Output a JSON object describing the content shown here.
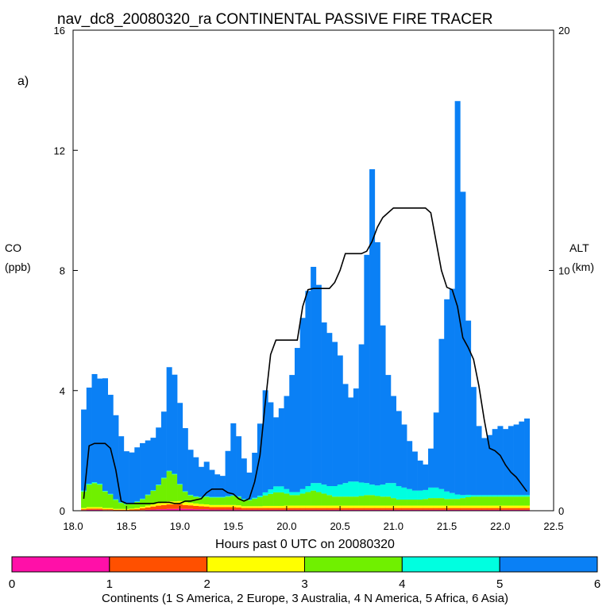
{
  "chart_data": {
    "type": "area",
    "title": "nav_dc8_20080320_ra CONTINENTAL PASSIVE FIRE TRACER",
    "panel_label": "a)",
    "xlabel": "Hours past 0 UTC on 20080320",
    "ylabel_left_line1": "CO",
    "ylabel_left_line2": "(ppb)",
    "ylabel_right_line1": "ALT",
    "ylabel_right_line2": "(km)",
    "xlim": [
      18.0,
      22.5
    ],
    "ylim_left": [
      0,
      16
    ],
    "ylim_right": [
      0,
      20
    ],
    "x_ticks": [
      "18.0",
      "18.5",
      "19.0",
      "19.5",
      "20.0",
      "20.5",
      "21.0",
      "21.5",
      "22.0",
      "22.5"
    ],
    "y_ticks_left": [
      "0",
      "4",
      "8",
      "12",
      "16"
    ],
    "y_ticks_right": [
      "0",
      "10",
      "20"
    ],
    "stacked_series_note": "stacked by continent; cumulative totals",
    "time": [
      18.1,
      18.15,
      18.2,
      18.25,
      18.3,
      18.35,
      18.4,
      18.45,
      18.5,
      18.55,
      18.6,
      18.65,
      18.7,
      18.75,
      18.8,
      18.85,
      18.9,
      18.95,
      19.0,
      19.05,
      19.1,
      19.15,
      19.2,
      19.25,
      19.3,
      19.35,
      19.4,
      19.45,
      19.5,
      19.55,
      19.6,
      19.65,
      19.7,
      19.75,
      19.8,
      19.85,
      19.9,
      19.95,
      20.0,
      20.05,
      20.1,
      20.15,
      20.2,
      20.25,
      20.3,
      20.35,
      20.4,
      20.45,
      20.5,
      20.55,
      20.6,
      20.65,
      20.7,
      20.75,
      20.8,
      20.85,
      20.9,
      20.95,
      21.0,
      21.05,
      21.1,
      21.15,
      21.2,
      21.25,
      21.3,
      21.35,
      21.4,
      21.45,
      21.5,
      21.55,
      21.6,
      21.65,
      21.7,
      21.75,
      21.8,
      21.85,
      21.9,
      21.95,
      22.0,
      22.05,
      22.1,
      22.15,
      22.2,
      22.25
    ],
    "series": [
      {
        "name": "S America",
        "code": 1,
        "values": [
          0.02,
          0.03,
          0.03,
          0.03,
          0.02,
          0.02,
          0.01,
          0.01,
          0.01,
          0.01,
          0.01,
          0.02,
          0.03,
          0.04,
          0.05,
          0.05,
          0.06,
          0.06,
          0.07,
          0.06,
          0.06,
          0.05,
          0.05,
          0.05,
          0.04,
          0.04,
          0.04,
          0.04,
          0.04,
          0.04,
          0.03,
          0.03,
          0.03,
          0.03,
          0.03,
          0.03,
          0.03,
          0.03,
          0.03,
          0.03,
          0.03,
          0.03,
          0.03,
          0.03,
          0.03,
          0.03,
          0.03,
          0.03,
          0.03,
          0.03,
          0.03,
          0.03,
          0.03,
          0.03,
          0.03,
          0.03,
          0.03,
          0.03,
          0.03,
          0.03,
          0.03,
          0.03,
          0.03,
          0.03,
          0.03,
          0.03,
          0.03,
          0.03,
          0.03,
          0.03,
          0.03,
          0.03,
          0.03,
          0.03,
          0.03,
          0.03,
          0.03,
          0.03,
          0.03,
          0.03,
          0.03,
          0.03,
          0.03,
          0.03
        ]
      },
      {
        "name": "Europe",
        "code": 2,
        "values": [
          0.03,
          0.04,
          0.04,
          0.04,
          0.03,
          0.03,
          0.02,
          0.02,
          0.02,
          0.03,
          0.04,
          0.06,
          0.08,
          0.1,
          0.12,
          0.14,
          0.15,
          0.15,
          0.15,
          0.13,
          0.12,
          0.11,
          0.1,
          0.09,
          0.08,
          0.08,
          0.08,
          0.08,
          0.08,
          0.07,
          0.06,
          0.06,
          0.06,
          0.06,
          0.06,
          0.06,
          0.06,
          0.06,
          0.06,
          0.06,
          0.06,
          0.06,
          0.06,
          0.06,
          0.06,
          0.06,
          0.06,
          0.06,
          0.06,
          0.06,
          0.06,
          0.06,
          0.06,
          0.06,
          0.06,
          0.06,
          0.06,
          0.06,
          0.06,
          0.06,
          0.06,
          0.06,
          0.06,
          0.06,
          0.06,
          0.06,
          0.06,
          0.06,
          0.06,
          0.06,
          0.06,
          0.06,
          0.06,
          0.06,
          0.06,
          0.06,
          0.06,
          0.06,
          0.06,
          0.06,
          0.06,
          0.06,
          0.06,
          0.06
        ]
      },
      {
        "name": "Australia",
        "code": 3,
        "values": [
          0.04,
          0.05,
          0.05,
          0.05,
          0.04,
          0.04,
          0.03,
          0.03,
          0.03,
          0.03,
          0.04,
          0.05,
          0.06,
          0.07,
          0.08,
          0.09,
          0.1,
          0.1,
          0.1,
          0.09,
          0.08,
          0.08,
          0.07,
          0.07,
          0.07,
          0.07,
          0.07,
          0.07,
          0.07,
          0.07,
          0.06,
          0.06,
          0.06,
          0.06,
          0.07,
          0.07,
          0.07,
          0.07,
          0.08,
          0.08,
          0.08,
          0.08,
          0.08,
          0.08,
          0.08,
          0.08,
          0.08,
          0.08,
          0.08,
          0.08,
          0.08,
          0.08,
          0.08,
          0.08,
          0.08,
          0.08,
          0.08,
          0.08,
          0.08,
          0.08,
          0.08,
          0.08,
          0.08,
          0.08,
          0.08,
          0.08,
          0.08,
          0.08,
          0.08,
          0.08,
          0.08,
          0.08,
          0.08,
          0.08,
          0.08,
          0.08,
          0.08,
          0.08,
          0.08,
          0.08,
          0.08,
          0.08,
          0.08,
          0.08
        ]
      },
      {
        "name": "N America",
        "code": 4,
        "values": [
          0.55,
          0.75,
          0.8,
          0.75,
          0.55,
          0.45,
          0.3,
          0.2,
          0.15,
          0.15,
          0.2,
          0.25,
          0.35,
          0.45,
          0.6,
          0.8,
          1.0,
          0.9,
          0.55,
          0.35,
          0.25,
          0.22,
          0.22,
          0.25,
          0.25,
          0.25,
          0.25,
          0.28,
          0.3,
          0.28,
          0.22,
          0.2,
          0.25,
          0.3,
          0.35,
          0.4,
          0.45,
          0.45,
          0.4,
          0.35,
          0.35,
          0.4,
          0.45,
          0.5,
          0.45,
          0.4,
          0.35,
          0.3,
          0.3,
          0.3,
          0.3,
          0.3,
          0.32,
          0.35,
          0.35,
          0.32,
          0.3,
          0.3,
          0.25,
          0.2,
          0.2,
          0.2,
          0.2,
          0.2,
          0.22,
          0.25,
          0.25,
          0.25,
          0.22,
          0.22,
          0.22,
          0.25,
          0.28,
          0.3,
          0.3,
          0.3,
          0.3,
          0.3,
          0.3,
          0.3,
          0.3,
          0.3,
          0.3,
          0.3
        ]
      },
      {
        "name": "Africa",
        "code": 5,
        "values": [
          0.03,
          0.03,
          0.03,
          0.03,
          0.02,
          0.02,
          0.02,
          0.02,
          0.02,
          0.02,
          0.02,
          0.02,
          0.02,
          0.02,
          0.02,
          0.02,
          0.02,
          0.02,
          0.02,
          0.02,
          0.02,
          0.02,
          0.02,
          0.02,
          0.02,
          0.02,
          0.02,
          0.02,
          0.02,
          0.02,
          0.02,
          0.02,
          0.03,
          0.05,
          0.1,
          0.15,
          0.2,
          0.2,
          0.15,
          0.1,
          0.1,
          0.15,
          0.2,
          0.25,
          0.3,
          0.3,
          0.3,
          0.35,
          0.4,
          0.45,
          0.5,
          0.5,
          0.45,
          0.4,
          0.35,
          0.35,
          0.4,
          0.45,
          0.5,
          0.45,
          0.4,
          0.35,
          0.3,
          0.3,
          0.3,
          0.35,
          0.35,
          0.3,
          0.25,
          0.2,
          0.15,
          0.1,
          0.08,
          0.05,
          0.05,
          0.05,
          0.05,
          0.05,
          0.05,
          0.05,
          0.05,
          0.05,
          0.05,
          0.05
        ]
      },
      {
        "name": "Asia",
        "code": 6,
        "values": [
          2.7,
          3.2,
          3.6,
          3.5,
          3.75,
          3.3,
          2.8,
          2.2,
          1.75,
          1.7,
          1.8,
          1.85,
          1.8,
          1.75,
          1.9,
          2.2,
          3.45,
          3.3,
          2.7,
          2.1,
          1.5,
          1.3,
          1.0,
          1.15,
          0.9,
          0.75,
          0.7,
          1.5,
          2.4,
          2.0,
          1.35,
          0.9,
          1.5,
          2.4,
          3.4,
          2.9,
          2.3,
          2.6,
          3.1,
          3.9,
          4.8,
          5.7,
          6.5,
          7.2,
          6.6,
          5.4,
          5.1,
          4.8,
          4.3,
          3.3,
          2.8,
          3.1,
          4.6,
          7.6,
          10.5,
          8.1,
          5.3,
          3.6,
          2.9,
          2.5,
          2.1,
          1.6,
          1.3,
          1.0,
          0.85,
          1.3,
          2.5,
          5.0,
          6.4,
          6.8,
          13.1,
          10.1,
          5.8,
          3.6,
          2.3,
          1.9,
          2.0,
          2.2,
          2.3,
          2.2,
          2.3,
          2.35,
          2.45,
          2.55
        ]
      }
    ],
    "altitude_km": [
      0.5,
      2.7,
      2.8,
      2.8,
      2.8,
      2.6,
      1.7,
      0.4,
      0.3,
      0.3,
      0.3,
      0.3,
      0.3,
      0.3,
      0.35,
      0.35,
      0.35,
      0.3,
      0.3,
      0.4,
      0.4,
      0.45,
      0.5,
      0.75,
      0.9,
      0.9,
      0.9,
      0.75,
      0.7,
      0.5,
      0.4,
      0.5,
      1.2,
      2.3,
      4.5,
      6.5,
      7.1,
      7.1,
      7.1,
      7.1,
      7.1,
      8.5,
      9.2,
      9.25,
      9.25,
      9.25,
      9.25,
      9.5,
      10.0,
      10.7,
      10.7,
      10.7,
      10.7,
      10.8,
      11.2,
      11.8,
      12.2,
      12.4,
      12.6,
      12.6,
      12.6,
      12.6,
      12.6,
      12.6,
      12.6,
      12.4,
      11.2,
      10.0,
      9.3,
      9.2,
      8.5,
      7.2,
      6.8,
      6.3,
      5.2,
      3.8,
      2.6,
      2.5,
      2.3,
      1.9,
      1.6,
      1.4,
      1.1,
      0.8
    ],
    "colorbar": {
      "title": "Continents (1 S America, 2 Europe, 3 Australia, 4 N America, 5 Africa, 6 Asia)",
      "ticks": [
        "0",
        "1",
        "2",
        "3",
        "4",
        "5",
        "6"
      ],
      "colors": [
        "#ff10a8",
        "#ff5000",
        "#ffff00",
        "#70f000",
        "#00ffe0",
        "#0a80f5"
      ]
    }
  }
}
